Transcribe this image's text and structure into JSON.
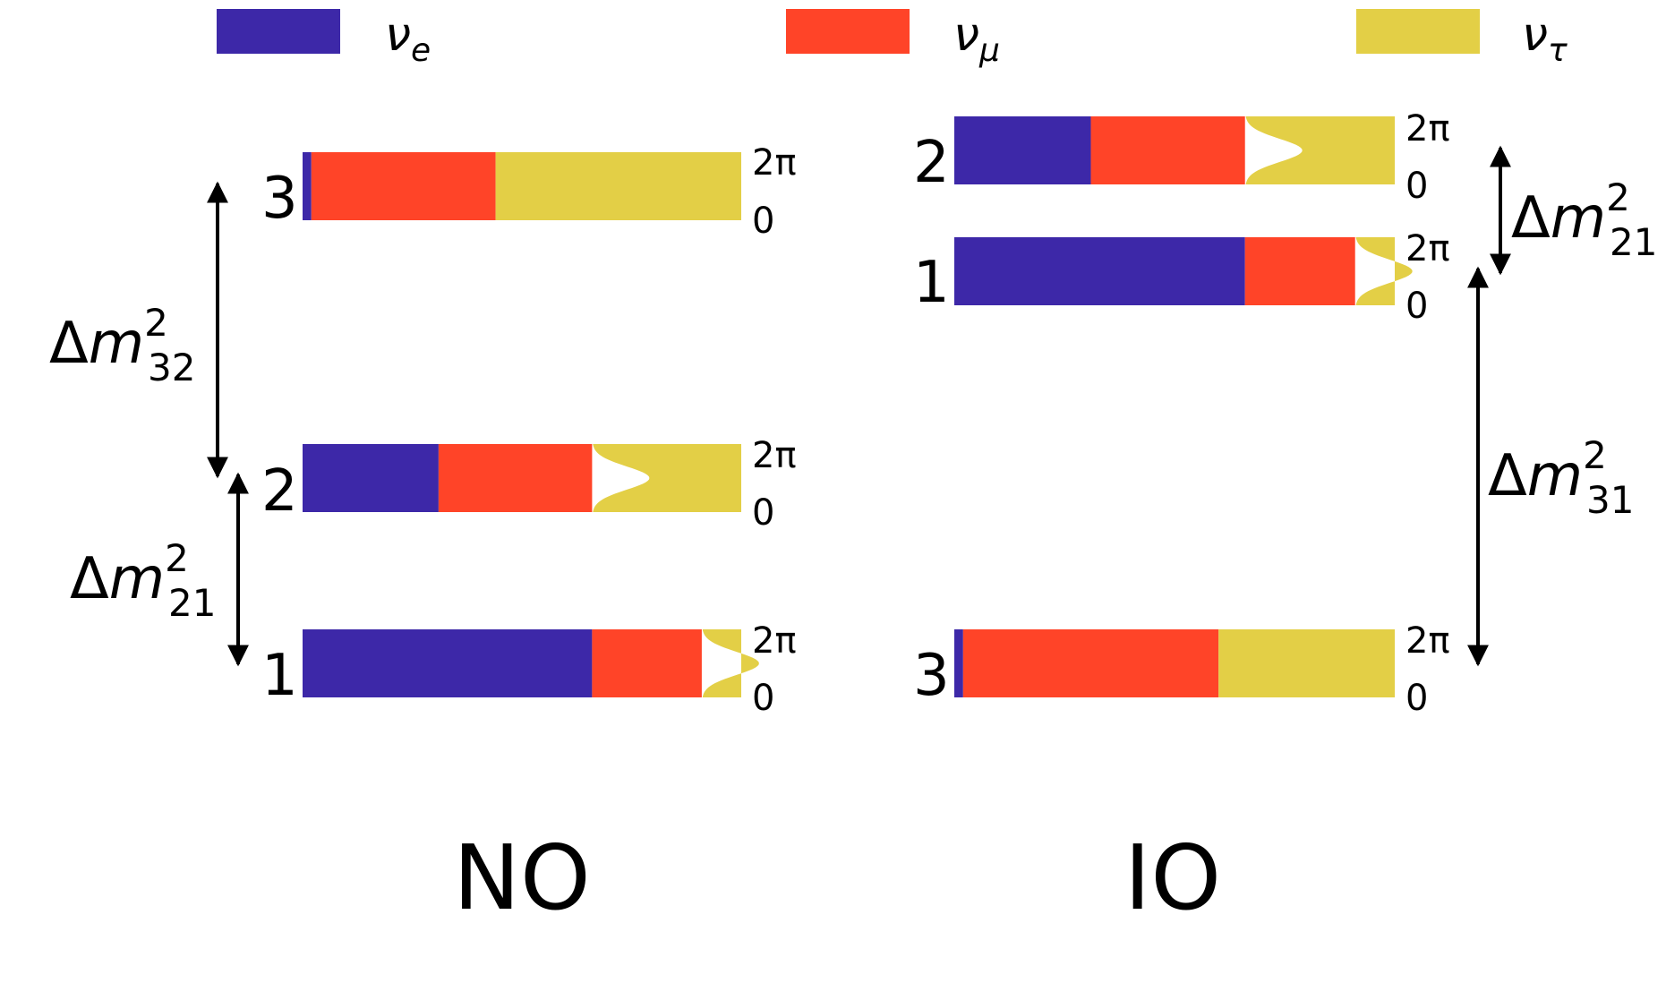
{
  "legend": [
    {
      "symbol": "ν",
      "subscript": "e",
      "color": "#3D28A8",
      "icon": "nu-e-swatch"
    },
    {
      "symbol": "ν",
      "subscript": "μ",
      "color": "#FF4428",
      "icon": "nu-mu-swatch"
    },
    {
      "symbol": "ν",
      "subscript": "τ",
      "color": "#E3CF46",
      "icon": "nu-tau-swatch"
    }
  ],
  "phase_top_label": "2π",
  "phase_bottom_label": "0",
  "orderings": [
    {
      "id": "no",
      "title": "NO",
      "levels": [
        {
          "number": "3",
          "fractions": [
            0.02,
            0.42,
            0.56
          ]
        },
        {
          "number": "2",
          "fractions": [
            0.31,
            0.35,
            0.34
          ]
        },
        {
          "number": "1",
          "fractions": [
            0.66,
            0.25,
            0.09
          ]
        }
      ],
      "splittings": [
        {
          "delta": "Δ",
          "mass": "m",
          "power": "2",
          "indices": "32"
        },
        {
          "delta": "Δ",
          "mass": "m",
          "power": "2",
          "indices": "21"
        }
      ]
    },
    {
      "id": "io",
      "title": "IO",
      "levels": [
        {
          "number": "2",
          "fractions": [
            0.31,
            0.35,
            0.34
          ]
        },
        {
          "number": "1",
          "fractions": [
            0.66,
            0.25,
            0.09
          ]
        },
        {
          "number": "3",
          "fractions": [
            0.02,
            0.58,
            0.4
          ]
        }
      ],
      "splittings": [
        {
          "delta": "Δ",
          "mass": "m",
          "power": "2",
          "indices": "21"
        },
        {
          "delta": "Δ",
          "mass": "m",
          "power": "2",
          "indices": "31"
        }
      ]
    }
  ]
}
